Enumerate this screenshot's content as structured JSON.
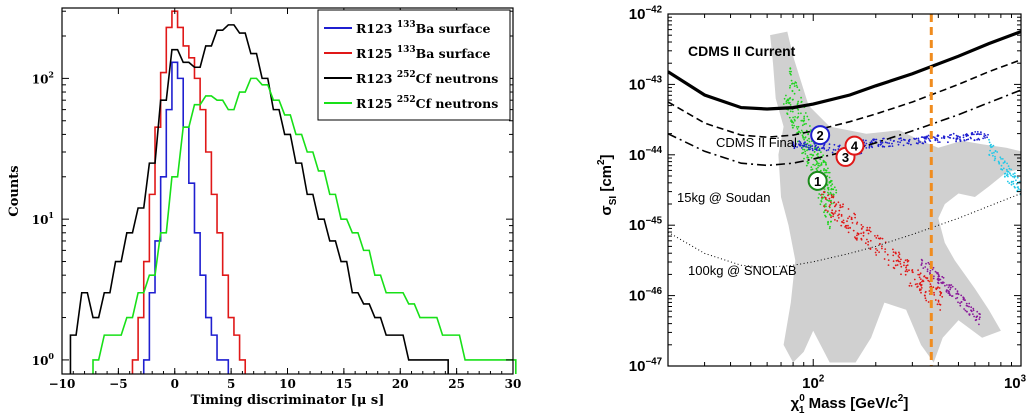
{
  "chart_data": [
    {
      "type": "line",
      "title": "",
      "xlabel": "Timing discriminator [μ s]",
      "ylabel": "Counts",
      "xlim": [
        -10,
        30
      ],
      "ylim_log10": [
        -0.1,
        2.5
      ],
      "yscale": "log",
      "x_ticks": [
        "−10",
        "−5",
        "0",
        "5",
        "10",
        "15",
        "20",
        "25",
        "30"
      ],
      "y_ticks": [
        {
          "base": "10",
          "exp": "0"
        },
        {
          "base": "10",
          "exp": "1"
        },
        {
          "base": "10",
          "exp": "2"
        }
      ],
      "legend_position": "top-right",
      "grid": false,
      "series": [
        {
          "name": "R123 ¹³³Ba surface",
          "legend": {
            "pre": "R123 ",
            "sup": "133",
            "post": "Ba surface"
          },
          "color": "#1f1fd0",
          "x": [
            -2.5,
            -2,
            -1.5,
            -1,
            -0.5,
            0,
            0.5,
            1,
            1.5,
            2,
            2.5,
            3,
            3.5,
            4,
            4.5
          ],
          "y": [
            1,
            3,
            7,
            20,
            60,
            130,
            100,
            45,
            18,
            8,
            4,
            2,
            1.5,
            1,
            1
          ]
        },
        {
          "name": "R125 ¹³³Ba surface",
          "legend": {
            "pre": "R125 ",
            "sup": "133",
            "post": "Ba surface"
          },
          "color": "#e01818",
          "x": [
            -3.5,
            -3,
            -2.5,
            -2,
            -1.5,
            -1,
            -0.5,
            0,
            0.5,
            1,
            1.5,
            2,
            2.5,
            3,
            3.5,
            4,
            4.5,
            5,
            5.5,
            6
          ],
          "y": [
            1,
            2,
            5,
            15,
            45,
            110,
            230,
            300,
            230,
            170,
            140,
            100,
            60,
            30,
            15,
            8,
            4,
            2,
            1.5,
            1
          ]
        },
        {
          "name": "R123 ²⁵²Cf neutrons",
          "legend": {
            "pre": "R123 ",
            "sup": "252",
            "post": "Cf neutrons"
          },
          "color": "#000000",
          "x": [
            -9,
            -8,
            -7,
            -6,
            -5,
            -4,
            -3,
            -2,
            -1,
            0,
            1,
            2,
            3,
            4,
            5,
            6,
            7,
            8,
            9,
            10,
            11,
            12,
            13,
            14,
            15,
            16,
            17,
            18,
            19,
            20,
            21,
            22,
            23,
            24
          ],
          "y": [
            1.5,
            3,
            2,
            3,
            5,
            8,
            12,
            25,
            70,
            160,
            130,
            120,
            170,
            220,
            240,
            210,
            150,
            100,
            60,
            40,
            25,
            15,
            10,
            7,
            5,
            3,
            2.5,
            2,
            1.5,
            1.5,
            1,
            1,
            1,
            1
          ]
        },
        {
          "name": "R125 ²⁵²Cf neutrons",
          "legend": {
            "pre": "R125 ",
            "sup": "252",
            "post": "Cf neutrons"
          },
          "color": "#18e018",
          "x": [
            -7,
            -6,
            -5,
            -4,
            -3,
            -2,
            -1,
            0,
            1,
            2,
            3,
            4,
            5,
            6,
            7,
            8,
            9,
            10,
            11,
            12,
            13,
            14,
            15,
            16,
            17,
            18,
            19,
            20,
            21,
            22,
            23,
            24,
            25,
            26,
            27,
            28,
            29,
            30
          ],
          "y": [
            1,
            1.5,
            1.5,
            2,
            3,
            4,
            8,
            20,
            45,
            65,
            75,
            70,
            60,
            80,
            100,
            90,
            70,
            55,
            40,
            30,
            22,
            15,
            10,
            8,
            6,
            4,
            3,
            3,
            2.5,
            2,
            2,
            1.5,
            1.5,
            1,
            1,
            1,
            1,
            1
          ]
        }
      ]
    },
    {
      "type": "line",
      "title": "",
      "xlabel": {
        "pre": "χ",
        "sup": "0",
        "sub": "1",
        "post": " Mass [GeV/c",
        "sup2": "2",
        "end": "]"
      },
      "ylabel": {
        "pre": "σ",
        "sub": "SI",
        "post": " [cm",
        "sup": "2",
        "end": "]"
      },
      "xscale": "log",
      "yscale": "log",
      "xlim": [
        20,
        1000
      ],
      "ylim_log10": [
        -47,
        -42
      ],
      "x_ticks": [
        {
          "base": "10",
          "exp": "2"
        },
        {
          "base": "10",
          "exp": "3"
        }
      ],
      "y_ticks": [
        {
          "base": "10",
          "exp": "−42"
        },
        {
          "base": "10",
          "exp": "−43"
        },
        {
          "base": "10",
          "exp": "−44"
        },
        {
          "base": "10",
          "exp": "−45"
        },
        {
          "base": "10",
          "exp": "−46"
        },
        {
          "base": "10",
          "exp": "−47"
        }
      ],
      "grid": false,
      "curve_labels": {
        "current": "CDMS II Current",
        "final": "CDMS II Final",
        "soudan": "15kg @ Soudan",
        "snolab": "100kg @ SNOLAB"
      },
      "benchmarks": [
        "1",
        "2",
        "3",
        "4"
      ],
      "benchmark_points": [
        {
          "label": "1",
          "mass": 105,
          "log10_sigma": -44.37,
          "color": "#1a8a1a"
        },
        {
          "label": "2",
          "mass": 108,
          "log10_sigma": -43.72,
          "color": "#1f1fd0"
        },
        {
          "label": "3",
          "mass": 143,
          "log10_sigma": -44.03,
          "color": "#e01818"
        },
        {
          "label": "4",
          "mass": 158,
          "log10_sigma": -43.87,
          "color": "#e01818"
        }
      ],
      "colors": {
        "region": "#d0d0d0",
        "vline": "#f08c1e"
      },
      "vline_mass": 370,
      "series": [
        {
          "key": "current",
          "style": "solid-thick",
          "color": "#000000",
          "x": [
            20,
            30,
            45,
            60,
            80,
            100,
            150,
            200,
            300,
            500,
            700,
            1000
          ],
          "y": [
            -42.82,
            -43.15,
            -43.33,
            -43.35,
            -43.33,
            -43.28,
            -43.15,
            -43.02,
            -42.85,
            -42.6,
            -42.42,
            -42.25
          ]
        },
        {
          "key": "final",
          "style": "dashed",
          "color": "#000000",
          "x": [
            20,
            30,
            45,
            60,
            80,
            100,
            150,
            200,
            300,
            500,
            700,
            1000
          ],
          "y": [
            -43.25,
            -43.55,
            -43.72,
            -43.75,
            -43.72,
            -43.66,
            -43.53,
            -43.42,
            -43.25,
            -43.0,
            -42.82,
            -42.65
          ]
        },
        {
          "key": "soudan",
          "style": "dashdot",
          "color": "#000000",
          "x": [
            20,
            30,
            45,
            60,
            80,
            100,
            150,
            200,
            300,
            500,
            700,
            1000
          ],
          "y": [
            -43.7,
            -43.95,
            -44.12,
            -44.15,
            -44.12,
            -44.06,
            -43.94,
            -43.83,
            -43.66,
            -43.43,
            -43.26,
            -43.08
          ]
        },
        {
          "key": "snolab",
          "style": "dotted",
          "color": "#000000",
          "x": [
            20,
            30,
            45,
            60,
            80,
            100,
            150,
            200,
            300,
            500,
            700,
            1000
          ],
          "y": [
            -45.1,
            -45.4,
            -45.57,
            -45.6,
            -45.57,
            -45.52,
            -45.4,
            -45.3,
            -45.13,
            -44.9,
            -44.73,
            -44.55
          ]
        }
      ]
    }
  ]
}
